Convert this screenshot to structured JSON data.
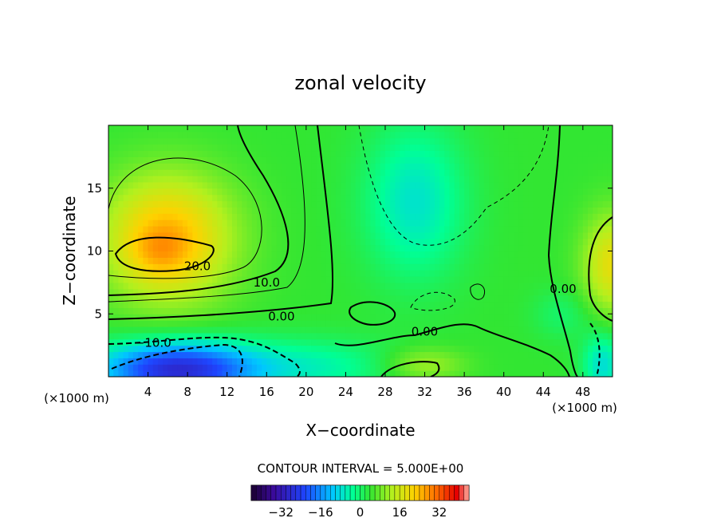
{
  "chart_data": {
    "type": "heatmap",
    "title": "zonal velocity",
    "xlabel": "X−coordinate",
    "ylabel": "Z−coordinate",
    "x_unit": "(×1000 m)",
    "z_unit": "(×1000 m)",
    "xlim": [
      0,
      51
    ],
    "ylim": [
      0,
      20
    ],
    "x_ticks": [
      4,
      8,
      12,
      16,
      20,
      24,
      28,
      32,
      36,
      40,
      44,
      48
    ],
    "y_ticks": [
      5,
      10,
      15
    ],
    "contour_interval_text": "CONTOUR INTERVAL = 5.000E+00",
    "contour_labels": [
      {
        "text": "20.0",
        "x": 9.0,
        "z": 8.8
      },
      {
        "text": "10.0",
        "x": 16.0,
        "z": 7.5
      },
      {
        "text": "0.00",
        "x": 17.5,
        "z": 4.8
      },
      {
        "text": "−10.0",
        "x": 4.5,
        "z": 2.7
      },
      {
        "text": "0.00",
        "x": 32.0,
        "z": 3.6
      },
      {
        "text": "0.00",
        "x": 46.0,
        "z": 7.0
      }
    ],
    "colorbar": {
      "min": -44,
      "max": 44,
      "ticks": [
        -32,
        -16,
        0,
        16,
        32
      ],
      "tick_labels": [
        "−32",
        "−16",
        "0",
        "16",
        "32"
      ]
    },
    "features": [
      {
        "kind": "max",
        "x": 5,
        "z": 10,
        "value": 25
      },
      {
        "kind": "max",
        "x": 50,
        "z": 9,
        "value": 18
      },
      {
        "kind": "min",
        "x": 8,
        "z": 1,
        "value": -25
      },
      {
        "kind": "min",
        "x": 31,
        "z": 13,
        "value": -7
      }
    ]
  }
}
